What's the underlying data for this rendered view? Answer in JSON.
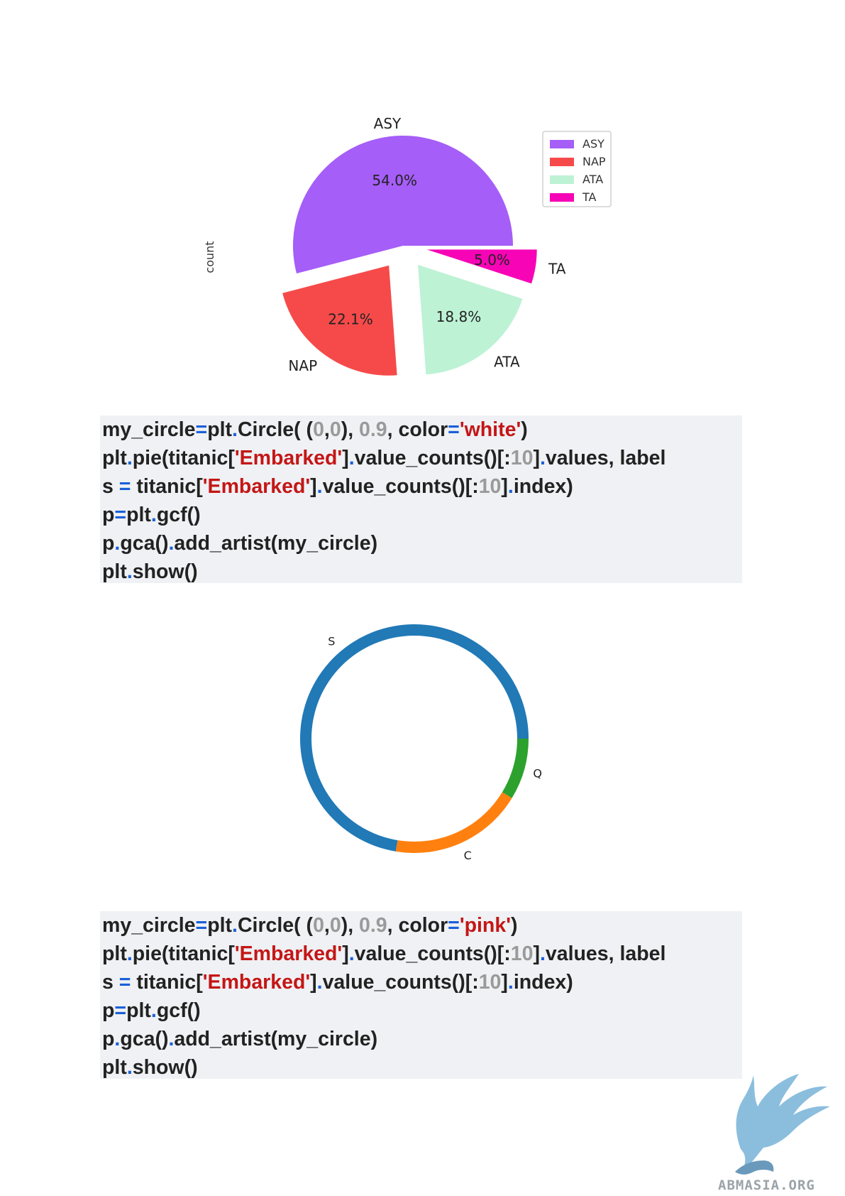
{
  "chart_data": [
    {
      "type": "pie",
      "ylabel": "count",
      "categories": [
        "ASY",
        "NAP",
        "ATA",
        "TA"
      ],
      "values": [
        54.0,
        22.1,
        18.8,
        5.0
      ],
      "pct_labels": [
        "54.0%",
        "22.1%",
        "18.8%",
        "5.0%"
      ],
      "colors": [
        "#a55ef7",
        "#f64a4a",
        "#bdf2d5",
        "#f704b6"
      ],
      "exploded": [
        false,
        true,
        true,
        true
      ],
      "legend": {
        "entries": [
          "ASY",
          "NAP",
          "ATA",
          "TA"
        ],
        "position": "upper-right"
      }
    },
    {
      "type": "pie",
      "style": "donut",
      "categories": [
        "S",
        "C",
        "Q"
      ],
      "values": [
        72.4,
        18.9,
        8.7
      ],
      "colors": [
        "#2179b6",
        "#ff800f",
        "#2ca12e"
      ],
      "center_circle_color": "white"
    }
  ],
  "code_blocks": [
    [
      [
        [
          "t-plain",
          "my_circle"
        ],
        [
          "t-op",
          "="
        ],
        [
          "t-plain",
          "plt"
        ],
        [
          "t-op",
          "."
        ],
        [
          "t-plain",
          "Circle( ("
        ],
        [
          "t-num",
          "0"
        ],
        [
          "t-plain",
          ","
        ],
        [
          "t-num",
          "0"
        ],
        [
          "t-plain",
          "), "
        ],
        [
          "t-num",
          "0.9"
        ],
        [
          "t-plain",
          ", color"
        ],
        [
          "t-op",
          "="
        ],
        [
          "t-str",
          "'white'"
        ],
        [
          "t-plain",
          ")"
        ]
      ],
      [
        [
          "t-plain",
          "plt"
        ],
        [
          "t-op",
          "."
        ],
        [
          "t-plain",
          "pie(titanic["
        ],
        [
          "t-str",
          "'Embarked'"
        ],
        [
          "t-plain",
          "]"
        ],
        [
          "t-op",
          "."
        ],
        [
          "t-plain",
          "value_counts()[:"
        ],
        [
          "t-num",
          "10"
        ],
        [
          "t-plain",
          "]"
        ],
        [
          "t-op",
          "."
        ],
        [
          "t-plain",
          "values, label"
        ]
      ],
      [
        [
          "t-plain",
          "s "
        ],
        [
          "t-op",
          "="
        ],
        [
          "t-plain",
          " titanic["
        ],
        [
          "t-str",
          "'Embarked'"
        ],
        [
          "t-plain",
          "]"
        ],
        [
          "t-op",
          "."
        ],
        [
          "t-plain",
          "value_counts()[:"
        ],
        [
          "t-num",
          "10"
        ],
        [
          "t-plain",
          "]"
        ],
        [
          "t-op",
          "."
        ],
        [
          "t-plain",
          "index)"
        ]
      ],
      [
        [
          "t-plain",
          "p"
        ],
        [
          "t-op",
          "="
        ],
        [
          "t-plain",
          "plt"
        ],
        [
          "t-op",
          "."
        ],
        [
          "t-plain",
          "gcf()"
        ]
      ],
      [
        [
          "t-plain",
          "p"
        ],
        [
          "t-op",
          "."
        ],
        [
          "t-plain",
          "gca()"
        ],
        [
          "t-op",
          "."
        ],
        [
          "t-plain",
          "add_artist(my_circle)"
        ]
      ],
      [
        [
          "t-plain",
          "plt"
        ],
        [
          "t-op",
          "."
        ],
        [
          "t-plain",
          "show()"
        ]
      ]
    ],
    [
      [
        [
          "t-plain",
          "my_circle"
        ],
        [
          "t-op",
          "="
        ],
        [
          "t-plain",
          "plt"
        ],
        [
          "t-op",
          "."
        ],
        [
          "t-plain",
          "Circle( ("
        ],
        [
          "t-num",
          "0"
        ],
        [
          "t-plain",
          ","
        ],
        [
          "t-num",
          "0"
        ],
        [
          "t-plain",
          "), "
        ],
        [
          "t-num",
          "0.9"
        ],
        [
          "t-plain",
          ", color"
        ],
        [
          "t-op",
          "="
        ],
        [
          "t-str",
          "'pink'"
        ],
        [
          "t-plain",
          ")"
        ]
      ],
      [
        [
          "t-plain",
          "plt"
        ],
        [
          "t-op",
          "."
        ],
        [
          "t-plain",
          "pie(titanic["
        ],
        [
          "t-str",
          "'Embarked'"
        ],
        [
          "t-plain",
          "]"
        ],
        [
          "t-op",
          "."
        ],
        [
          "t-plain",
          "value_counts()[:"
        ],
        [
          "t-num",
          "10"
        ],
        [
          "t-plain",
          "]"
        ],
        [
          "t-op",
          "."
        ],
        [
          "t-plain",
          "values, label"
        ]
      ],
      [
        [
          "t-plain",
          "s "
        ],
        [
          "t-op",
          "="
        ],
        [
          "t-plain",
          " titanic["
        ],
        [
          "t-str",
          "'Embarked'"
        ],
        [
          "t-plain",
          "]"
        ],
        [
          "t-op",
          "."
        ],
        [
          "t-plain",
          "value_counts()[:"
        ],
        [
          "t-num",
          "10"
        ],
        [
          "t-plain",
          "]"
        ],
        [
          "t-op",
          "."
        ],
        [
          "t-plain",
          "index)"
        ]
      ],
      [
        [
          "t-plain",
          "p"
        ],
        [
          "t-op",
          "="
        ],
        [
          "t-plain",
          "plt"
        ],
        [
          "t-op",
          "."
        ],
        [
          "t-plain",
          "gcf()"
        ]
      ],
      [
        [
          "t-plain",
          "p"
        ],
        [
          "t-op",
          "."
        ],
        [
          "t-plain",
          "gca()"
        ],
        [
          "t-op",
          "."
        ],
        [
          "t-plain",
          "add_artist(my_circle)"
        ]
      ],
      [
        [
          "t-plain",
          "plt"
        ],
        [
          "t-op",
          "."
        ],
        [
          "t-plain",
          "show()"
        ]
      ]
    ]
  ],
  "watermark": {
    "text": "ABMASIA.ORG"
  }
}
